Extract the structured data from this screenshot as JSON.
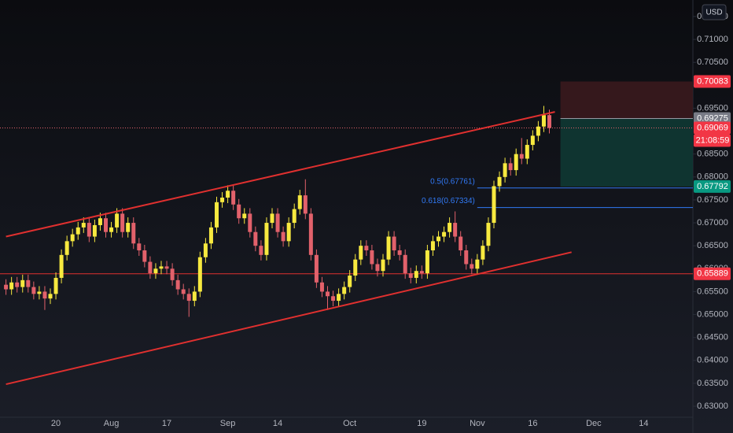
{
  "chart_data": {
    "type": "candlestick",
    "currency": "USD",
    "categories": [
      null,
      null,
      null,
      null,
      null,
      null,
      null,
      null,
      null,
      "20",
      null,
      null,
      null,
      null,
      null,
      null,
      null,
      null,
      null,
      "Aug",
      null,
      null,
      null,
      null,
      null,
      null,
      null,
      null,
      null,
      "17",
      null,
      null,
      null,
      null,
      null,
      null,
      null,
      null,
      null,
      null,
      "Sep",
      null,
      null,
      null,
      null,
      null,
      null,
      null,
      null,
      "14",
      null,
      null,
      null,
      null,
      null,
      null,
      null,
      null,
      null,
      null,
      null,
      null,
      "Oct",
      null,
      null,
      null,
      null,
      null,
      null,
      null,
      null,
      null,
      null,
      null,
      null,
      "19",
      null,
      null,
      null,
      null,
      null,
      null,
      null,
      null,
      null,
      "Nov",
      null,
      null,
      null,
      null,
      null,
      null,
      null,
      null,
      null,
      "16",
      null,
      null,
      null,
      null,
      null,
      null,
      null,
      null,
      null,
      null,
      "Dec",
      null,
      null,
      null,
      null,
      null,
      null,
      null,
      null,
      "14"
    ],
    "open": [
      0.6565,
      0.6555,
      0.657,
      0.656,
      0.6575,
      0.656,
      0.6545,
      0.655,
      0.6535,
      0.6545,
      0.658,
      0.663,
      0.666,
      0.6675,
      0.669,
      0.67,
      0.667,
      0.6695,
      0.671,
      0.668,
      0.669,
      0.672,
      0.668,
      0.67,
      0.6655,
      0.664,
      0.6615,
      0.659,
      0.66,
      0.6605,
      0.66,
      0.6575,
      0.6555,
      0.6545,
      0.653,
      0.655,
      0.6625,
      0.6655,
      0.669,
      0.6745,
      0.6755,
      0.677,
      0.674,
      0.671,
      0.672,
      0.668,
      0.665,
      0.663,
      0.67,
      0.672,
      0.668,
      0.666,
      0.67,
      0.673,
      0.676,
      0.672,
      0.663,
      0.657,
      0.655,
      0.654,
      0.653,
      0.6545,
      0.656,
      0.6585,
      0.662,
      0.665,
      0.664,
      0.661,
      0.6595,
      0.662,
      0.667,
      0.664,
      0.663,
      0.659,
      0.658,
      0.6595,
      0.659,
      0.664,
      0.666,
      0.667,
      0.668,
      0.67,
      0.667,
      0.664,
      0.661,
      0.66,
      0.662,
      0.665,
      0.67,
      0.678,
      0.68,
      0.683,
      0.6815,
      0.685,
      0.684,
      0.687,
      0.689,
      0.691,
      0.6935,
      null,
      null,
      null,
      null,
      null,
      null,
      null,
      null,
      null,
      null,
      null,
      null,
      null,
      null,
      null,
      null,
      null
    ],
    "high": [
      0.6577,
      0.6582,
      0.6582,
      0.6587,
      0.6587,
      0.6572,
      0.6562,
      0.6562,
      0.6557,
      0.6592,
      0.6642,
      0.6672,
      0.6687,
      0.6702,
      0.6712,
      0.6712,
      0.6707,
      0.6722,
      0.6722,
      0.6702,
      0.6732,
      0.6732,
      0.6712,
      0.6712,
      0.6667,
      0.6652,
      0.6627,
      0.6612,
      0.6617,
      0.6617,
      0.6612,
      0.6587,
      0.6567,
      0.6557,
      0.6562,
      0.6637,
      0.6667,
      0.6702,
      0.6757,
      0.6767,
      0.6782,
      0.6782,
      0.6752,
      0.6732,
      0.6732,
      0.6692,
      0.6662,
      0.6712,
      0.6732,
      0.6732,
      0.6692,
      0.6712,
      0.6742,
      0.6772,
      0.6795,
      0.6732,
      0.6642,
      0.6582,
      0.6562,
      0.6552,
      0.6557,
      0.6572,
      0.6597,
      0.6632,
      0.6662,
      0.6662,
      0.6652,
      0.6622,
      0.6632,
      0.6682,
      0.6682,
      0.6652,
      0.6642,
      0.6602,
      0.6607,
      0.6607,
      0.6652,
      0.6672,
      0.6682,
      0.6692,
      0.6712,
      0.6725,
      0.6682,
      0.6652,
      0.6622,
      0.6632,
      0.6662,
      0.6712,
      0.6792,
      0.6812,
      0.6842,
      0.6842,
      0.6862,
      0.6885,
      0.6882,
      0.6902,
      0.6922,
      0.6955,
      0.6947,
      null,
      null,
      null,
      null,
      null,
      null,
      null,
      null,
      null,
      null,
      null,
      null,
      null,
      null,
      null,
      null,
      null
    ],
    "low": [
      0.6543,
      0.6543,
      0.6548,
      0.6548,
      0.6548,
      0.6533,
      0.6533,
      0.651,
      0.6523,
      0.6533,
      0.6568,
      0.6618,
      0.6648,
      0.6663,
      0.6678,
      0.6658,
      0.6658,
      0.6683,
      0.6668,
      0.6668,
      0.6678,
      0.6668,
      0.6668,
      0.6643,
      0.6628,
      0.6603,
      0.6578,
      0.6578,
      0.6588,
      0.6588,
      0.6563,
      0.6543,
      0.6533,
      0.6495,
      0.6518,
      0.6538,
      0.6613,
      0.6643,
      0.6678,
      0.6733,
      0.6743,
      0.6728,
      0.6698,
      0.6698,
      0.6668,
      0.6638,
      0.6618,
      0.6618,
      0.6688,
      0.6668,
      0.6648,
      0.6648,
      0.6688,
      0.6718,
      0.6708,
      0.6618,
      0.6558,
      0.6538,
      0.651,
      0.6518,
      0.6518,
      0.6533,
      0.6548,
      0.6573,
      0.6608,
      0.6628,
      0.6598,
      0.6583,
      0.6583,
      0.6608,
      0.6628,
      0.6618,
      0.6578,
      0.6568,
      0.6568,
      0.6578,
      0.6578,
      0.6628,
      0.6648,
      0.6658,
      0.6668,
      0.6658,
      0.6628,
      0.6598,
      0.6588,
      0.6588,
      0.6608,
      0.6638,
      0.6688,
      0.6768,
      0.6788,
      0.6803,
      0.6803,
      0.6828,
      0.6828,
      0.6858,
      0.6878,
      0.6898,
      0.6895,
      null,
      null,
      null,
      null,
      null,
      null,
      null,
      null,
      null,
      null,
      null,
      null,
      null,
      null,
      null,
      null,
      null
    ],
    "close": [
      0.6555,
      0.657,
      0.656,
      0.6575,
      0.656,
      0.6545,
      0.655,
      0.6535,
      0.6545,
      0.658,
      0.663,
      0.666,
      0.6675,
      0.669,
      0.67,
      0.667,
      0.6695,
      0.671,
      0.668,
      0.669,
      0.672,
      0.668,
      0.67,
      0.6655,
      0.664,
      0.6615,
      0.659,
      0.66,
      0.6605,
      0.66,
      0.6575,
      0.6555,
      0.6545,
      0.653,
      0.655,
      0.6625,
      0.6655,
      0.669,
      0.6745,
      0.6755,
      0.677,
      0.674,
      0.671,
      0.672,
      0.668,
      0.665,
      0.663,
      0.67,
      0.672,
      0.668,
      0.666,
      0.67,
      0.673,
      0.676,
      0.672,
      0.663,
      0.657,
      0.655,
      0.654,
      0.653,
      0.6545,
      0.656,
      0.6585,
      0.662,
      0.665,
      0.664,
      0.661,
      0.6595,
      0.662,
      0.667,
      0.664,
      0.663,
      0.659,
      0.658,
      0.6595,
      0.659,
      0.664,
      0.666,
      0.667,
      0.668,
      0.67,
      0.667,
      0.664,
      0.661,
      0.66,
      0.662,
      0.665,
      0.67,
      0.678,
      0.68,
      0.683,
      0.6815,
      0.685,
      0.684,
      0.687,
      0.689,
      0.691,
      0.6935,
      0.6907,
      null,
      null,
      null,
      null,
      null,
      null,
      null,
      null,
      null,
      null,
      null,
      null,
      null,
      null,
      null,
      null,
      null
    ],
    "up_color": "#f7e93f",
    "down_color": "#e2616b",
    "ylim": [
      0.6276,
      0.7186
    ],
    "yticks": [
      {
        "value": 0.63,
        "label": "0.63000"
      },
      {
        "value": 0.635,
        "label": "0.63500"
      },
      {
        "value": 0.64,
        "label": "0.64000"
      },
      {
        "value": 0.645,
        "label": "0.64500"
      },
      {
        "value": 0.65,
        "label": "0.65000"
      },
      {
        "value": 0.655,
        "label": "0.65500"
      },
      {
        "value": 0.66,
        "label": "0.66000"
      },
      {
        "value": 0.665,
        "label": "0.66500"
      },
      {
        "value": 0.67,
        "label": "0.67000"
      },
      {
        "value": 0.675,
        "label": "0.67500"
      },
      {
        "value": 0.68,
        "label": "0.68000"
      },
      {
        "value": 0.685,
        "label": "0.68500"
      },
      {
        "value": 0.69,
        "label": "0.69000"
      },
      {
        "value": 0.695,
        "label": "0.69500"
      },
      {
        "value": 0.7,
        "label": "0.70000"
      },
      {
        "value": 0.705,
        "label": "0.70500"
      },
      {
        "value": 0.71,
        "label": "0.71000"
      },
      {
        "value": 0.715,
        "label": "0.71500"
      }
    ],
    "trend_lines": [
      {
        "x": [
          0,
          99
        ],
        "y": [
          0.667,
          0.6942
        ],
        "color": "#e0302f"
      },
      {
        "x": [
          0,
          102
        ],
        "y": [
          0.6348,
          0.6636
        ],
        "color": "#e0302f"
      }
    ],
    "horizontal_line": {
      "value": 0.65889,
      "color": "#e0302f"
    },
    "fib_levels": [
      {
        "label": "0.5(0.67761)",
        "value": 0.67761,
        "start": 85
      },
      {
        "label": "0.618(0.67334)",
        "value": 0.67334,
        "start": 85
      }
    ],
    "position": {
      "start": 100,
      "stop": 0.70083,
      "entry": 0.69275,
      "target": 0.67792
    },
    "last_price": 0.69069,
    "countdown": "21:08:59",
    "price_labels": [
      {
        "value": 0.70083,
        "color": "#f23645"
      },
      {
        "value": 0.69275,
        "color": "#787b86"
      },
      {
        "value": 0.69069,
        "color": "#f23645"
      },
      {
        "value": 0.67792,
        "color": "#089981"
      },
      {
        "value": 0.65889,
        "color": "#f23645"
      }
    ]
  }
}
